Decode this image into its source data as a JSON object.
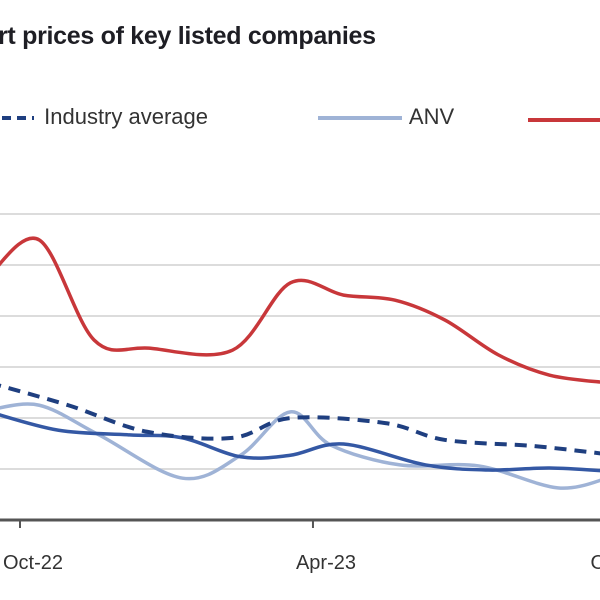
{
  "chart_data": {
    "type": "line",
    "title": "rt prices of key listed companies",
    "xlabel": "",
    "ylabel": "",
    "x_tick_labels": [
      "Oct-22",
      "Apr-23",
      "O"
    ],
    "x_ticks": [
      "2022-10-01",
      "2023-04-01",
      "2023-10-01"
    ],
    "ylim": [
      0,
      6.5
    ],
    "grid": true,
    "legend_placement": "top",
    "series": [
      {
        "name": "Industry average",
        "color": "#1f3f80",
        "style": "dashed",
        "x": [
          "2022-09-12",
          "2022-10-31",
          "2022-12-19",
          "2023-02-10",
          "2023-03-18",
          "2023-05-16",
          "2023-06-22",
          "2023-08-16",
          "2023-10-01"
        ],
        "values": [
          2.69,
          2.25,
          1.73,
          1.61,
          2.0,
          1.9,
          1.57,
          1.45,
          1.29
        ]
      },
      {
        "name": "ANV",
        "color": "#9fb3d6",
        "style": "solid",
        "x": [
          "2022-09-12",
          "2022-10-13",
          "2022-11-19",
          "2023-01-10",
          "2023-02-15",
          "2023-03-18",
          "2023-04-12",
          "2023-05-25",
          "2023-07-13",
          "2023-08-31",
          "2023-10-01"
        ],
        "values": [
          2.16,
          2.25,
          1.67,
          0.82,
          1.27,
          2.12,
          1.47,
          1.08,
          1.06,
          0.63,
          0.82
        ]
      },
      {
        "color": "#c8373a",
        "style": "solid",
        "x": [
          "2022-09-12",
          "2022-10-13",
          "2022-11-16",
          "2022-12-20",
          "2023-02-10",
          "2023-03-18",
          "2023-04-20",
          "2023-05-22",
          "2023-06-22",
          "2023-07-25",
          "2023-08-26",
          "2023-10-01"
        ],
        "values": [
          4.8,
          5.49,
          3.53,
          3.37,
          3.33,
          4.65,
          4.41,
          4.31,
          3.92,
          3.24,
          2.84,
          2.69
        ]
      },
      {
        "color": "#3458a4",
        "style": "solid",
        "x": [
          "2022-09-12",
          "2022-10-25",
          "2022-12-08",
          "2023-01-10",
          "2023-02-15",
          "2023-03-18",
          "2023-04-20",
          "2023-06-10",
          "2023-07-19",
          "2023-08-26",
          "2023-10-01"
        ],
        "values": [
          2.12,
          1.76,
          1.67,
          1.61,
          1.24,
          1.27,
          1.49,
          1.08,
          0.98,
          1.02,
          0.96
        ]
      }
    ]
  },
  "legend": {
    "industry": "Industry average",
    "anv": "ANV"
  }
}
